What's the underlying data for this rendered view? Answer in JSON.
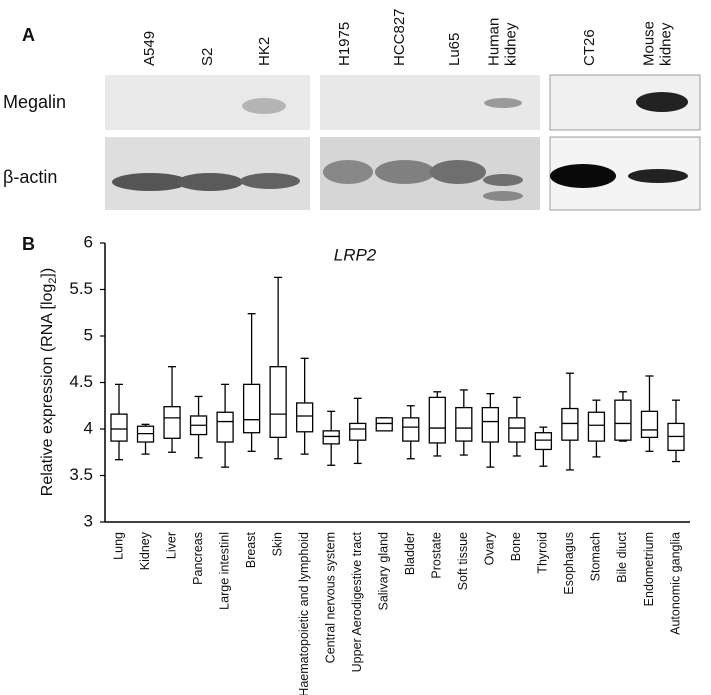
{
  "panel_a": {
    "label": "A",
    "lanes": [
      [
        "A549"
      ],
      [
        "S2"
      ],
      [
        "HK2"
      ],
      [
        "H1975"
      ],
      [
        "HCC827"
      ],
      [
        "Lu65"
      ],
      [
        "Human",
        "kidney"
      ],
      [
        "CT26"
      ],
      [
        "Mouse",
        "kidney"
      ]
    ],
    "rows": [
      "Megalin",
      "β-actin"
    ]
  },
  "chart_data": {
    "type": "box",
    "panel_label": "B",
    "title": "LRP2",
    "y_label": [
      "Relative expression (RNA [log",
      "2",
      "])"
    ],
    "categories": [
      "Lung",
      "Kidney",
      "Liver",
      "Pancreas",
      "Large intestinl",
      "Breast",
      "Skin",
      "Haematopoietic and lymphoid",
      "Central nervous system",
      "Upper Aerodigestive tract",
      "Salivary gland",
      "Bladder",
      "Prostate",
      "Soft tissue",
      "Ovary",
      "Bone",
      "Thyroid",
      "Esophagus",
      "Stomach",
      "Bile diuct",
      "Endometrium",
      "Autonomic ganglia"
    ],
    "min": [
      3.67,
      3.73,
      3.75,
      3.69,
      3.59,
      3.76,
      3.68,
      3.73,
      3.61,
      3.63,
      3.98,
      3.68,
      3.71,
      3.72,
      3.59,
      3.71,
      3.6,
      3.56,
      3.7,
      3.87,
      3.76,
      3.65
    ],
    "q1": [
      3.87,
      3.86,
      3.9,
      3.94,
      3.86,
      3.96,
      3.91,
      3.97,
      3.84,
      3.88,
      3.98,
      3.87,
      3.85,
      3.87,
      3.86,
      3.86,
      3.78,
      3.88,
      3.87,
      3.88,
      3.91,
      3.77
    ],
    "median": [
      4.0,
      3.95,
      4.12,
      4.04,
      4.08,
      4.1,
      4.16,
      4.14,
      3.92,
      4.0,
      4.06,
      4.02,
      4.01,
      4.01,
      4.08,
      4.01,
      3.88,
      4.06,
      4.04,
      4.06,
      3.99,
      3.92
    ],
    "q3": [
      4.16,
      4.03,
      4.24,
      4.14,
      4.18,
      4.48,
      4.67,
      4.28,
      3.98,
      4.06,
      4.12,
      4.12,
      4.34,
      4.23,
      4.23,
      4.12,
      3.96,
      4.22,
      4.18,
      4.31,
      4.19,
      4.06
    ],
    "max": [
      4.48,
      4.05,
      4.67,
      4.35,
      4.48,
      5.24,
      5.63,
      4.76,
      4.19,
      4.33,
      4.12,
      4.25,
      4.4,
      4.42,
      4.38,
      4.34,
      4.02,
      4.6,
      4.31,
      4.4,
      4.57,
      4.31
    ],
    "color": "#000000",
    "ylim": [
      3,
      6
    ],
    "yticks": [
      3,
      3.5,
      4,
      4.5,
      5,
      5.5,
      6
    ]
  }
}
